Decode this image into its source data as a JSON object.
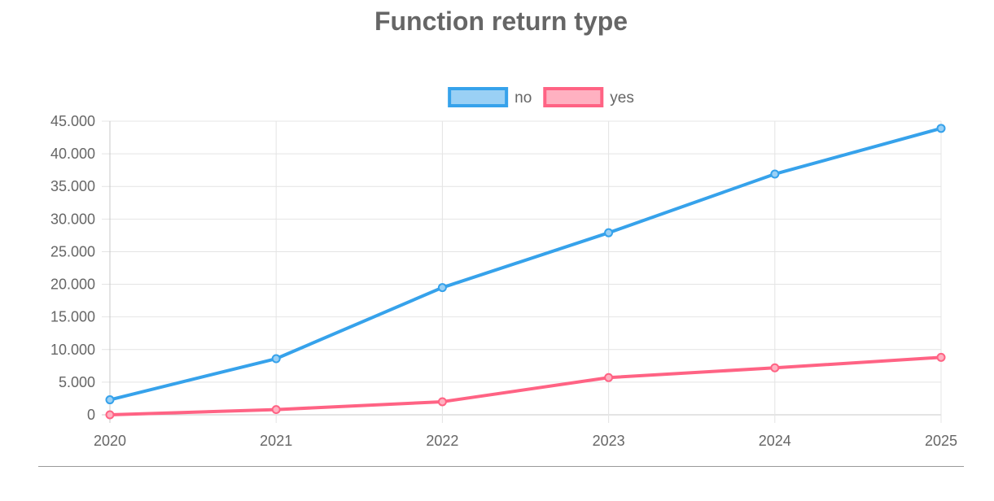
{
  "chart_data": {
    "type": "line",
    "title": "Function return type",
    "xlabel": "",
    "ylabel": "",
    "categories": [
      "2020",
      "2021",
      "2022",
      "2023",
      "2024",
      "2025"
    ],
    "y_ticks": [
      "0",
      "5.000",
      "10.000",
      "15.000",
      "20.000",
      "25.000",
      "30.000",
      "35.000",
      "40.000",
      "45.000"
    ],
    "ylim": [
      0,
      45000
    ],
    "grid": true,
    "legend_position": "top",
    "series": [
      {
        "name": "no",
        "color": "#36a2eb",
        "fill": "#9ad0f5",
        "values": [
          2300,
          8600,
          19500,
          27900,
          36900,
          43900
        ]
      },
      {
        "name": "yes",
        "color": "#ff6384",
        "fill": "#ffb1c1",
        "values": [
          0,
          800,
          2000,
          5700,
          7200,
          8800
        ]
      }
    ]
  }
}
